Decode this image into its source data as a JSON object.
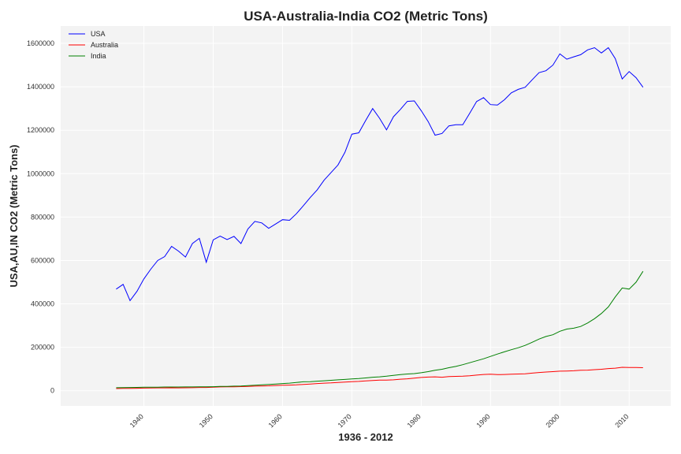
{
  "chart_data": {
    "type": "line",
    "title": "USA-Australia-India CO2 (Metric Tons)",
    "xlabel": "1936 - 2012",
    "ylabel": "USA,AU,IN CO2 (Metric Tons)",
    "xlim": [
      1928,
      2016
    ],
    "ylim": [
      -70000,
      1680000
    ],
    "xticks": [
      1940,
      1950,
      1960,
      1970,
      1980,
      1990,
      2000,
      2010
    ],
    "yticks": [
      0,
      200000,
      400000,
      600000,
      800000,
      1000000,
      1200000,
      1400000,
      1600000
    ],
    "grid": true,
    "legend_position": "top-left",
    "colors": {
      "plot_bg": "#f3f3f3",
      "grid": "#ffffff",
      "USA": "#0000ff",
      "Australia": "#ff0000",
      "India": "#008000"
    },
    "x": [
      1936,
      1937,
      1938,
      1939,
      1940,
      1941,
      1942,
      1943,
      1944,
      1945,
      1946,
      1947,
      1948,
      1949,
      1950,
      1951,
      1952,
      1953,
      1954,
      1955,
      1956,
      1957,
      1958,
      1959,
      1960,
      1961,
      1962,
      1963,
      1964,
      1965,
      1966,
      1967,
      1968,
      1969,
      1970,
      1971,
      1972,
      1973,
      1974,
      1975,
      1976,
      1977,
      1978,
      1979,
      1980,
      1981,
      1982,
      1983,
      1984,
      1985,
      1986,
      1987,
      1988,
      1989,
      1990,
      1991,
      1992,
      1993,
      1994,
      1995,
      1996,
      1997,
      1998,
      1999,
      2000,
      2001,
      2002,
      2003,
      2004,
      2005,
      2006,
      2007,
      2008,
      2009,
      2010,
      2011,
      2012
    ],
    "series": [
      {
        "name": "USA",
        "values": [
          468000,
          490000,
          415000,
          458000,
          515000,
          560000,
          600000,
          618000,
          665000,
          643000,
          616000,
          678000,
          702000,
          592000,
          695000,
          712000,
          696000,
          711000,
          678000,
          745000,
          780000,
          773000,
          748000,
          768000,
          788000,
          785000,
          815000,
          852000,
          890000,
          925000,
          970000,
          1005000,
          1040000,
          1098000,
          1182000,
          1188000,
          1245000,
          1300000,
          1255000,
          1202000,
          1262000,
          1296000,
          1333000,
          1335000,
          1290000,
          1240000,
          1177000,
          1185000,
          1220000,
          1225000,
          1225000,
          1278000,
          1332000,
          1350000,
          1318000,
          1316000,
          1340000,
          1372000,
          1388000,
          1398000,
          1432000,
          1465000,
          1474000,
          1500000,
          1552000,
          1527000,
          1538000,
          1548000,
          1570000,
          1580000,
          1556000,
          1580000,
          1530000,
          1436000,
          1470000,
          1442000,
          1398000
        ]
      },
      {
        "name": "Australia",
        "values": [
          10000,
          10500,
          11000,
          11500,
          12000,
          12500,
          13000,
          13000,
          13500,
          13000,
          13500,
          14000,
          15000,
          15000,
          16000,
          17500,
          18000,
          18000,
          19000,
          20000,
          21000,
          22000,
          22500,
          24000,
          25000,
          26000,
          27000,
          29000,
          31000,
          33000,
          35000,
          36000,
          38000,
          40000,
          42000,
          43000,
          45000,
          47000,
          49000,
          49000,
          50000,
          53000,
          55000,
          58000,
          61000,
          63000,
          64000,
          62000,
          65000,
          66000,
          67000,
          69000,
          72000,
          75000,
          76000,
          74000,
          75000,
          76000,
          77000,
          78000,
          81000,
          84000,
          86000,
          88000,
          90000,
          91000,
          92000,
          94000,
          95000,
          97000,
          99000,
          102000,
          104000,
          108000,
          107000,
          107000,
          106000
        ]
      },
      {
        "name": "India",
        "values": [
          14000,
          14500,
          15000,
          15500,
          16000,
          16500,
          16500,
          17000,
          17000,
          17000,
          17500,
          17500,
          18000,
          18000,
          18500,
          19500,
          20000,
          21000,
          22000,
          23500,
          25000,
          27000,
          29000,
          31000,
          33000,
          35000,
          38000,
          41000,
          42000,
          44000,
          46000,
          48000,
          50000,
          52000,
          54000,
          56000,
          59000,
          62000,
          64000,
          67000,
          71000,
          74000,
          77000,
          79000,
          83000,
          88000,
          94000,
          99000,
          106000,
          112000,
          120000,
          129000,
          138000,
          147000,
          158000,
          169000,
          179000,
          189000,
          198000,
          209000,
          223000,
          238000,
          250000,
          258000,
          274000,
          284000,
          288000,
          296000,
          312000,
          332000,
          356000,
          386000,
          432000,
          473000,
          468000,
          500000,
          550000
        ]
      }
    ]
  }
}
